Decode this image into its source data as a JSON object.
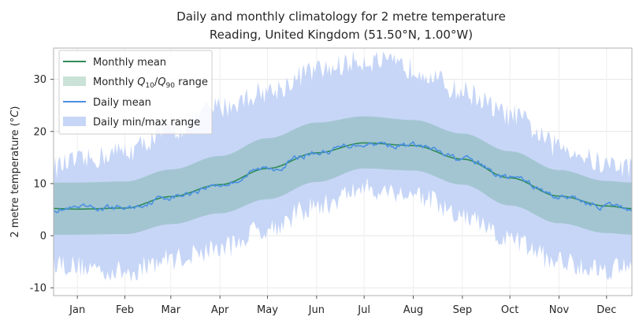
{
  "chart_data": {
    "type": "area",
    "title": "Daily and monthly climatology for 2 metre temperature",
    "subtitle": "Reading, United Kingdom (51.50°N, 1.00°W)",
    "ylabel_base": "2 metre temperature (",
    "ylabel_unit": "°C",
    "ylabel_end": ")",
    "xlabel": "",
    "ylim": [
      -11.5,
      36
    ],
    "yticks": [
      -10,
      0,
      10,
      20,
      30
    ],
    "grid": true,
    "legend_position": "top-left",
    "months": [
      "Jan",
      "Feb",
      "Mar",
      "Apr",
      "May",
      "Jun",
      "Jul",
      "Aug",
      "Sep",
      "Oct",
      "Nov",
      "Dec"
    ],
    "legend": {
      "monthly_mean": "Monthly mean",
      "q_range_prefix": "Monthly ",
      "q_range_q1": "Q",
      "q_range_q1_sub": "10",
      "q_range_sep": "/",
      "q_range_q2": "Q",
      "q_range_q2_sub": "90",
      "q_range_suffix": " range",
      "daily_mean": "Daily mean",
      "daily_range": "Daily min/max range"
    },
    "colors": {
      "monthly_mean": "#2e8b57",
      "q_band": "#4e9e7c",
      "daily_mean": "#4a90e2",
      "daily_band": "#c7d6f7"
    },
    "monthly_doy": [
      0,
      15,
      45,
      74,
      105,
      135,
      166,
      196,
      227,
      258,
      288,
      319,
      349,
      365
    ],
    "monthly_mean": [
      5.2,
      5.1,
      5.3,
      7.5,
      9.8,
      12.9,
      15.9,
      17.8,
      17.3,
      14.7,
      11.1,
      7.6,
      5.7,
      5.2
    ],
    "monthly_q10": [
      0.2,
      0.2,
      0.3,
      2.2,
      4.3,
      7.0,
      10.3,
      12.9,
      12.5,
      9.8,
      5.8,
      2.4,
      0.5,
      0.2
    ],
    "monthly_q90": [
      10.2,
      10.2,
      10.4,
      12.7,
      15.3,
      18.7,
      21.7,
      22.9,
      22.2,
      19.6,
      16.2,
      12.6,
      10.5,
      10.2
    ],
    "daily_max_anchor": {
      "doy": [
        0,
        15,
        45,
        74,
        105,
        135,
        166,
        196,
        227,
        258,
        288,
        319,
        349,
        365
      ],
      "values": [
        12.5,
        13.5,
        15.5,
        19.5,
        24,
        27,
        31,
        33,
        31.5,
        27,
        22.5,
        16.5,
        13,
        12.5
      ]
    },
    "daily_min_anchor": {
      "doy": [
        0,
        15,
        45,
        74,
        105,
        135,
        166,
        196,
        227,
        258,
        288,
        319,
        349,
        365
      ],
      "values": [
        -4.5,
        -5.5,
        -6.5,
        -4,
        -2,
        2,
        6,
        9.5,
        8.5,
        4,
        -0.5,
        -4.5,
        -6,
        -4.5
      ]
    }
  }
}
